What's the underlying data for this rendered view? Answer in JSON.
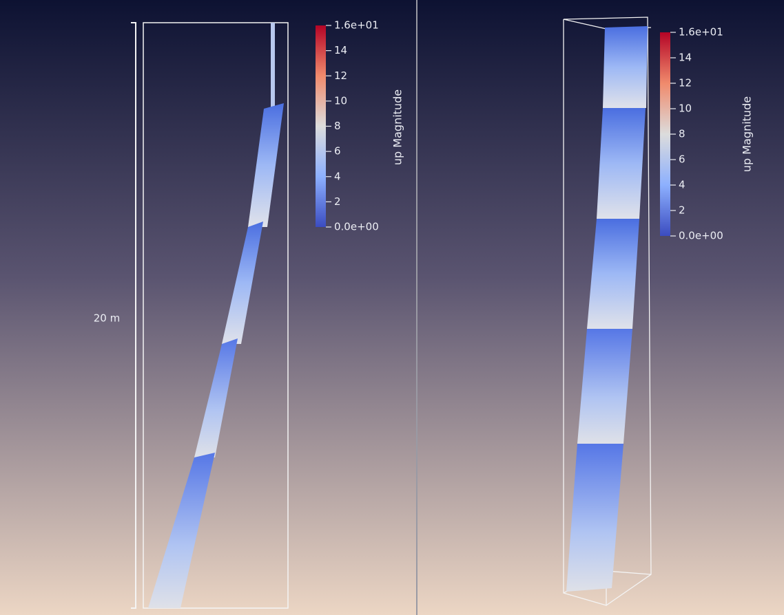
{
  "views": [
    {
      "scale_label": "20 m",
      "colorbar": {
        "title": "up Magnitude",
        "ticks": [
          "1.6e+01",
          "14",
          "12",
          "10",
          "8",
          "6",
          "4",
          "2",
          "0.0e+00"
        ]
      }
    },
    {
      "colorbar": {
        "title": "up Magnitude",
        "ticks": [
          "1.6e+01",
          "14",
          "12",
          "10",
          "8",
          "6",
          "4",
          "2",
          "0.0e+00"
        ]
      }
    }
  ]
}
